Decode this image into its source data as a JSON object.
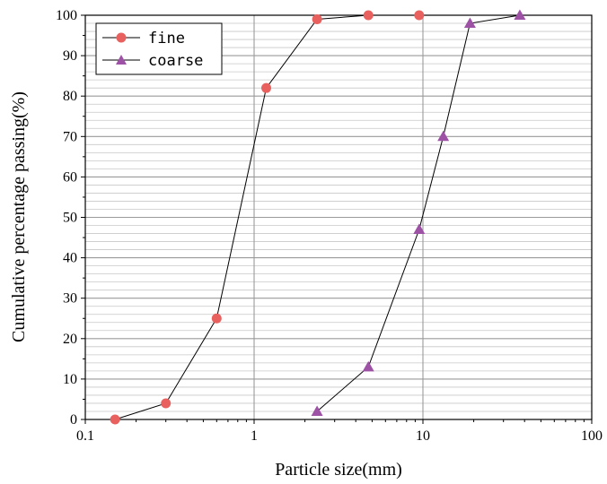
{
  "chart_data": {
    "type": "line",
    "title": "",
    "xlabel": "Particle size(mm)",
    "ylabel": "Cumulative percentage passing(%)",
    "x_scale": "log",
    "xlim": [
      0.1,
      100
    ],
    "ylim": [
      0,
      100
    ],
    "x_ticks": [
      {
        "value": 0.1,
        "label": "0.1"
      },
      {
        "value": 1,
        "label": "1"
      },
      {
        "value": 10,
        "label": "10"
      },
      {
        "value": 100,
        "label": "100"
      }
    ],
    "y_ticks": [
      {
        "value": 0,
        "label": "0"
      },
      {
        "value": 10,
        "label": "10"
      },
      {
        "value": 20,
        "label": "20"
      },
      {
        "value": 30,
        "label": "30"
      },
      {
        "value": 40,
        "label": "40"
      },
      {
        "value": 50,
        "label": "50"
      },
      {
        "value": 60,
        "label": "60"
      },
      {
        "value": 70,
        "label": "70"
      },
      {
        "value": 80,
        "label": "80"
      },
      {
        "value": 90,
        "label": "90"
      },
      {
        "value": 100,
        "label": "100"
      }
    ],
    "grid": true,
    "legend_position": "top-left",
    "series": [
      {
        "name": "fine",
        "marker": "circle",
        "color": "#e8615f",
        "x": [
          0.15,
          0.3,
          0.6,
          1.18,
          2.36,
          4.75,
          9.5
        ],
        "y": [
          0,
          4,
          25,
          82,
          99,
          100,
          100
        ]
      },
      {
        "name": "coarse",
        "marker": "triangle",
        "color": "#9e52a5",
        "x": [
          2.36,
          4.75,
          9.5,
          13.2,
          19,
          37.5
        ],
        "y": [
          2,
          13,
          47,
          70,
          98,
          100
        ]
      }
    ]
  }
}
